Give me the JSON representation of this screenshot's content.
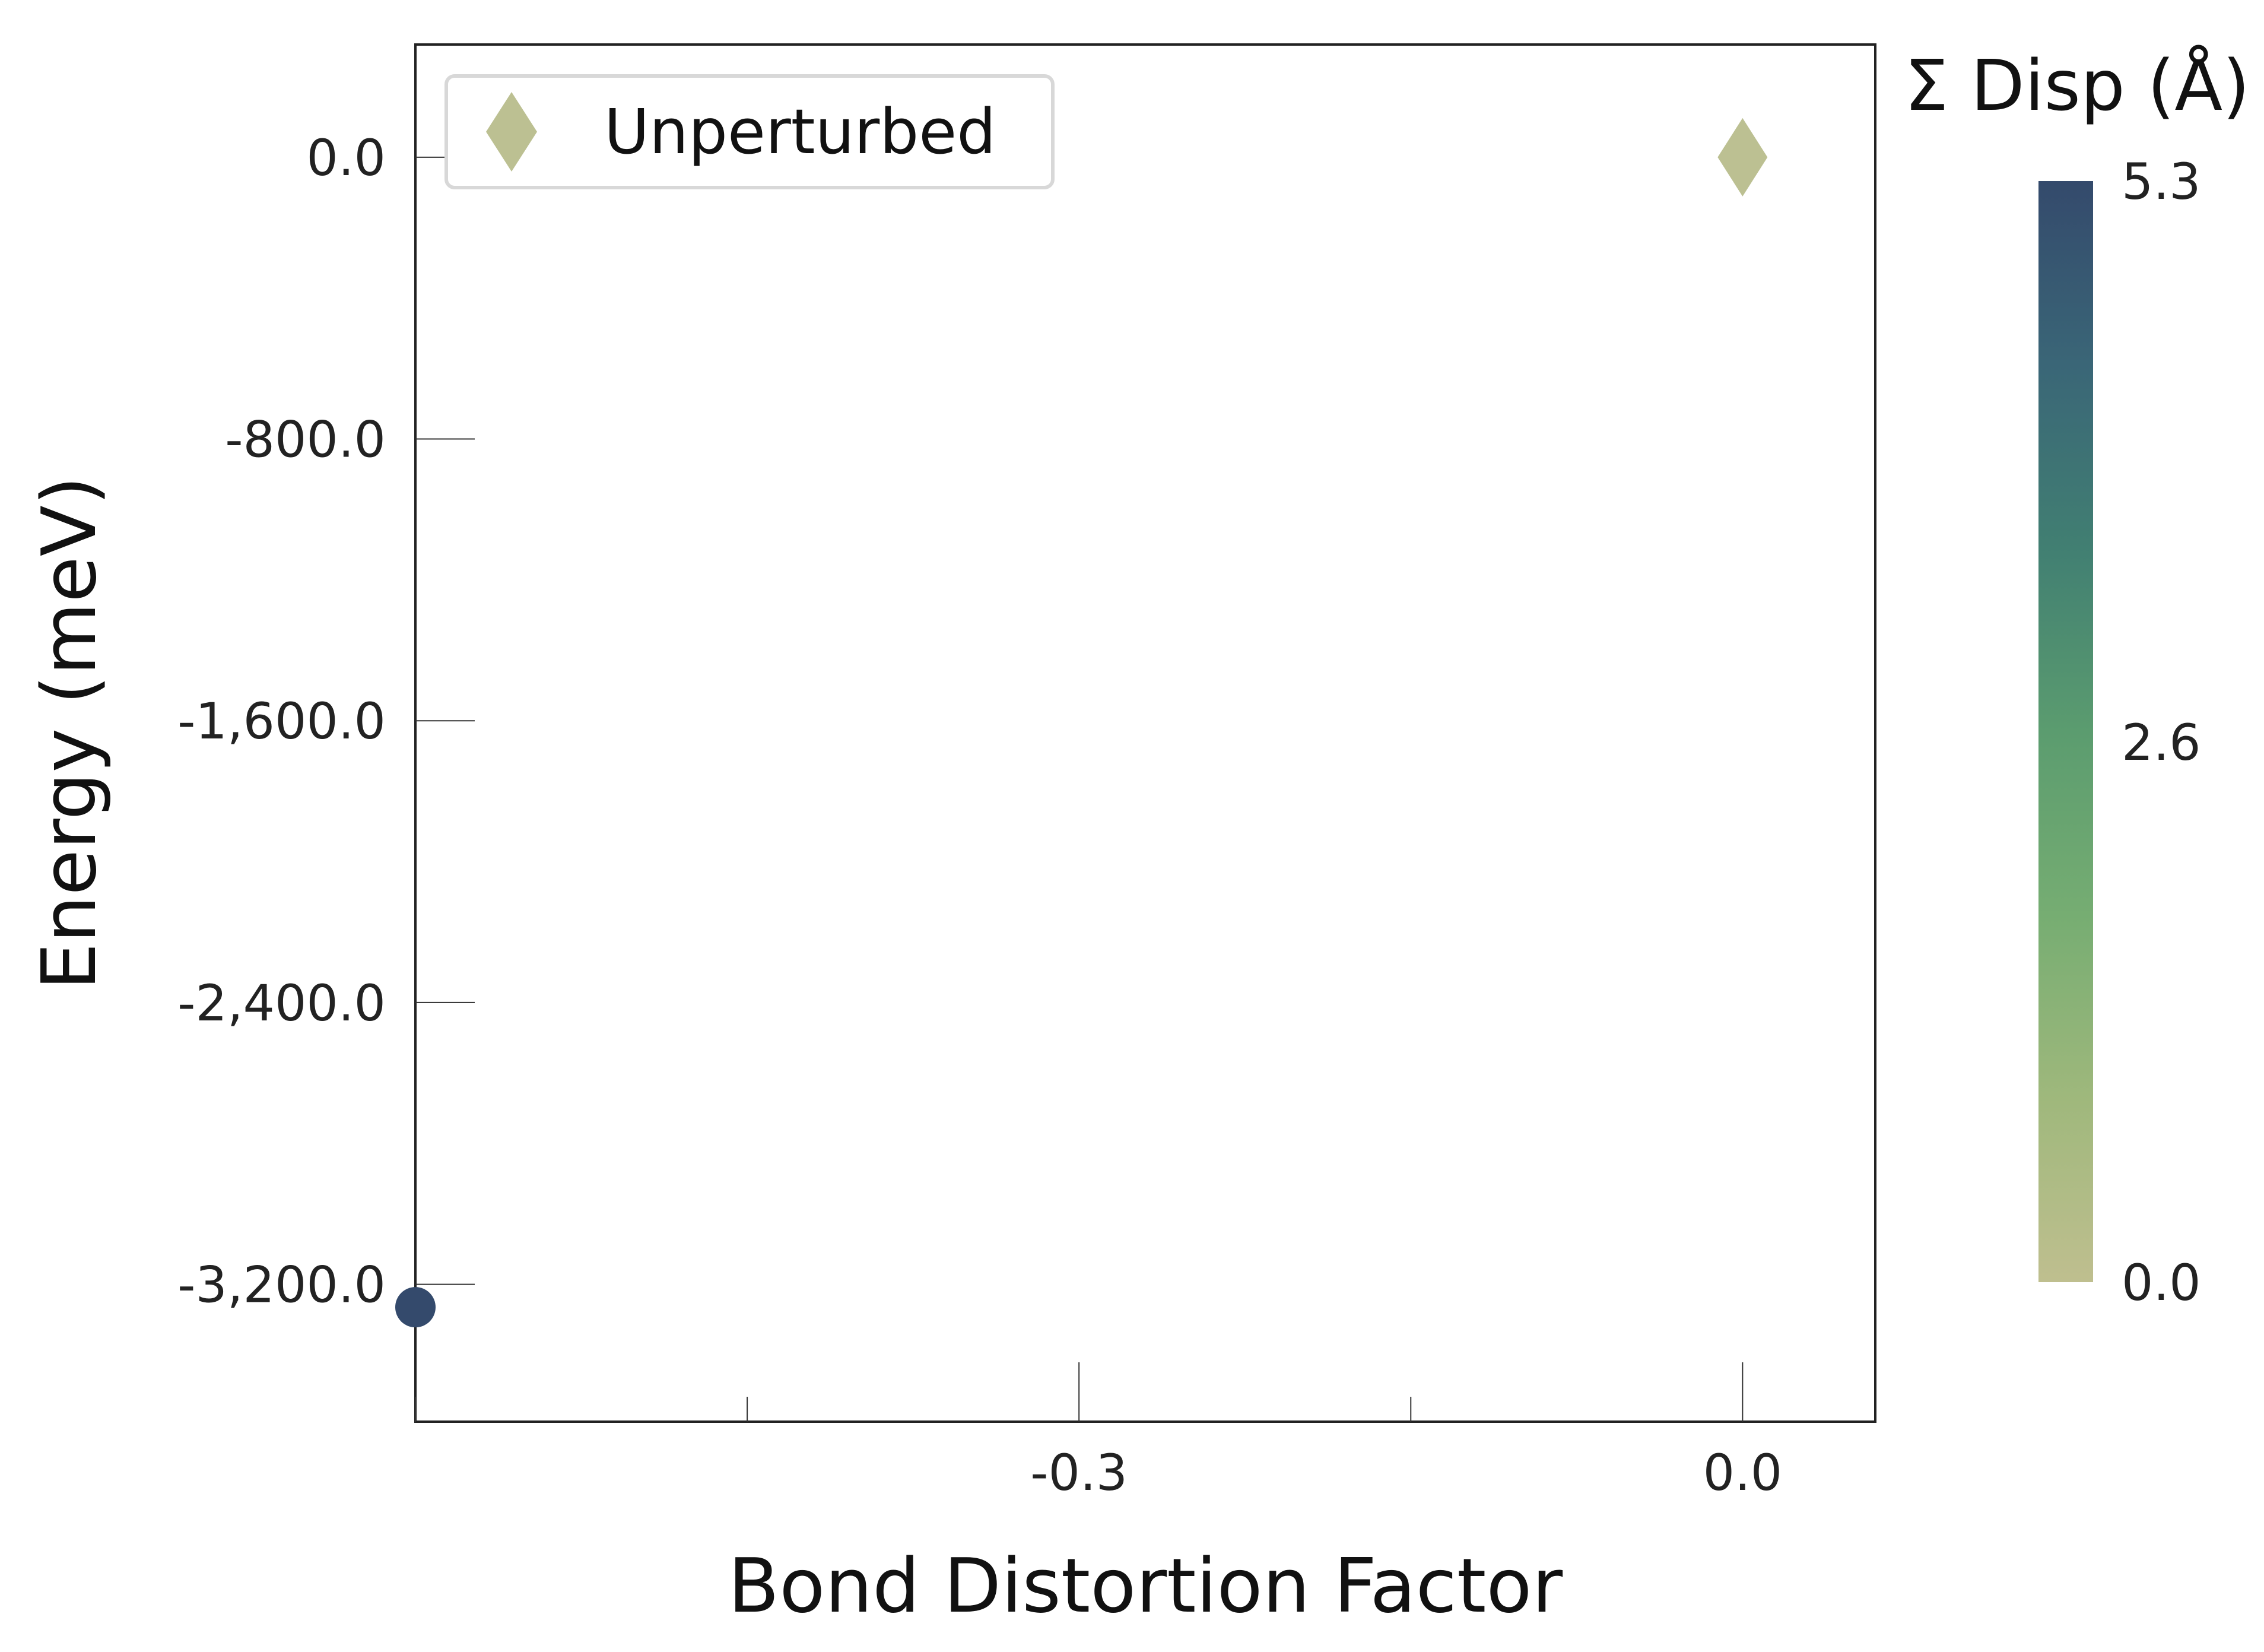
{
  "chart_data": {
    "type": "scatter",
    "xlabel": "Bond Distortion Factor",
    "ylabel": "Energy (meV)",
    "xlim": [
      -0.6,
      0.06
    ],
    "ylim": [
      -3590,
      320
    ],
    "x_ticks": [
      -0.3,
      0.0
    ],
    "x_tick_labels": [
      "-0.3",
      "0.0"
    ],
    "x_minor_ticks": [
      -0.6,
      -0.45,
      -0.15
    ],
    "y_ticks": [
      0,
      -800,
      -1600,
      -2400,
      -3200
    ],
    "y_tick_labels": [
      "0.0",
      "-800.0",
      "-1,600.0",
      "-2,400.0",
      "-3,200.0"
    ],
    "grid": false,
    "series": [
      {
        "marker": "circle",
        "points": [
          {
            "x": -0.6,
            "y": -3265,
            "disp": 5.3
          }
        ]
      },
      {
        "name": "Unperturbed",
        "marker": "diamond",
        "color": "#bcc092",
        "points": [
          {
            "x": 0.0,
            "y": 0.0
          }
        ]
      }
    ],
    "legend": {
      "placement": "top-left",
      "entries": [
        "Unperturbed"
      ]
    },
    "colorbar": {
      "title": "Σ Disp (Å)",
      "min": 0.0,
      "max": 5.3,
      "tick_values": [
        0.0,
        2.6,
        5.3
      ],
      "tick_labels": [
        "0.0",
        "2.6",
        "5.3"
      ],
      "colormap": [
        "#bfbf8f",
        "#9fb87c",
        "#76ad72",
        "#5b9c6f",
        "#417f72",
        "#3a6677",
        "#344a6c"
      ]
    }
  }
}
